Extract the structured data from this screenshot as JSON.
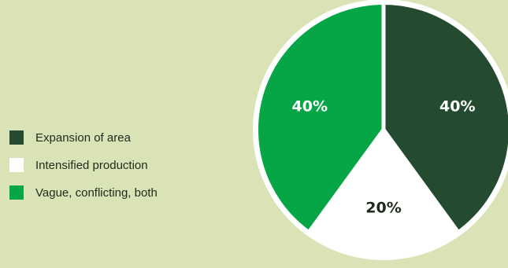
{
  "chart_data": {
    "type": "pie",
    "title": "",
    "legend_position": "left",
    "slices": [
      {
        "label": "Expansion of area",
        "value": 40,
        "display": "40%",
        "color": "#244a30",
        "text_color": "#ffffff"
      },
      {
        "label": "Intensified production",
        "value": 20,
        "display": "20%",
        "color": "#ffffff",
        "text_color": "#1f2a1c"
      },
      {
        "label": "Vague, conflicting, both",
        "value": 40,
        "display": "40%",
        "color": "#06a546",
        "text_color": "#ffffff"
      }
    ]
  },
  "colors": {
    "background": "#d9e3b5",
    "pie_border": "#ffffff"
  }
}
